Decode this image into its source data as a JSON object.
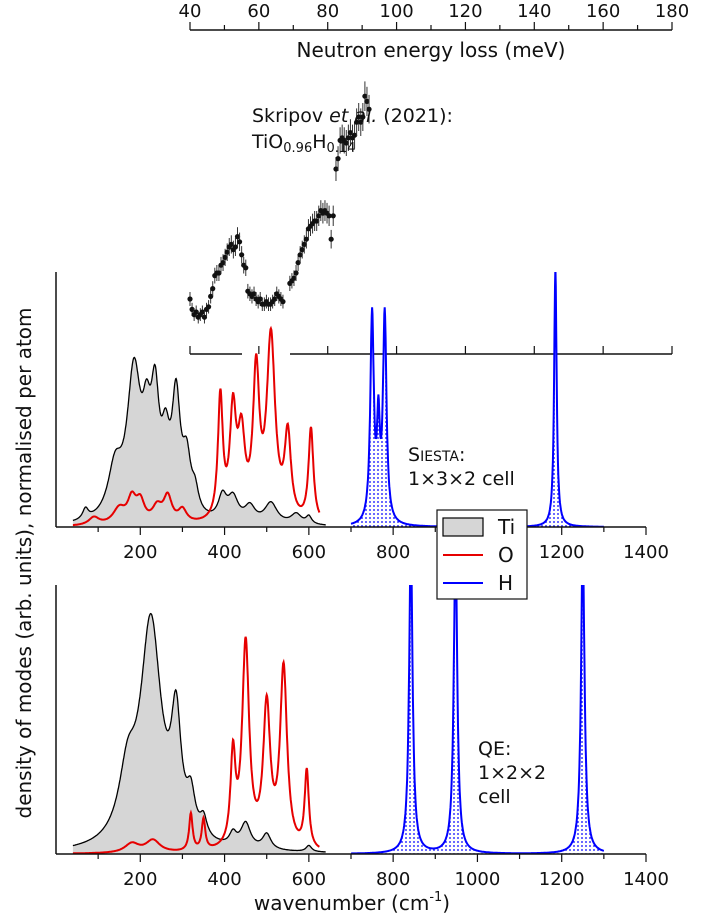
{
  "chart_data": [
    {
      "id": "experiment",
      "type": "scatter",
      "xlabel": "Neutron energy loss  (meV)",
      "xlim": [
        40,
        180
      ],
      "xticks": [
        40,
        60,
        80,
        100,
        120,
        140,
        160,
        180
      ],
      "annotation": {
        "line1_prefix": "Skripov ",
        "line1_italic": "et al.",
        "line1_suffix": " (2021):",
        "formula": [
          "TiO",
          "0.96",
          "H",
          "0.14"
        ]
      },
      "series": [
        {
          "points": [
            [
              40,
              0.1
            ],
            [
              40.6,
              0.06
            ],
            [
              41.2,
              0.04
            ],
            [
              41.8,
              0.05
            ],
            [
              42.4,
              0.03
            ],
            [
              43.0,
              0.04
            ],
            [
              43.6,
              0.05
            ],
            [
              44.2,
              0.03
            ],
            [
              44.8,
              0.06
            ],
            [
              45.4,
              0.07
            ],
            [
              46.0,
              0.11
            ],
            [
              46.6,
              0.14
            ],
            [
              47.2,
              0.19
            ],
            [
              47.8,
              0.2
            ],
            [
              48.4,
              0.2
            ],
            [
              49.0,
              0.23
            ],
            [
              49.6,
              0.24
            ],
            [
              50.2,
              0.26
            ],
            [
              50.8,
              0.28
            ],
            [
              51.4,
              0.3
            ],
            [
              52.0,
              0.31
            ],
            [
              52.6,
              0.29
            ],
            [
              53.2,
              0.3
            ],
            [
              53.8,
              0.34
            ],
            [
              54.4,
              0.32
            ],
            [
              55.0,
              0.27
            ],
            [
              55.6,
              0.23
            ],
            [
              56.2,
              0.22
            ],
            [
              56.8,
              0.13
            ],
            [
              57.4,
              0.12
            ],
            [
              58.0,
              0.11
            ],
            [
              58.6,
              0.12
            ],
            [
              59.2,
              0.1
            ],
            [
              59.8,
              0.09
            ],
            [
              60.4,
              0.1
            ],
            [
              61.0,
              0.08
            ],
            [
              61.6,
              0.08
            ],
            [
              62.2,
              0.09
            ],
            [
              62.8,
              0.08
            ],
            [
              63.4,
              0.08
            ],
            [
              64.0,
              0.09
            ],
            [
              64.6,
              0.1
            ],
            [
              65.2,
              0.12
            ],
            [
              65.8,
              0.11
            ],
            [
              66.4,
              0.1
            ],
            [
              67.0,
              0.09
            ],
            [
              69.0,
              0.16
            ],
            [
              69.6,
              0.17
            ],
            [
              70.2,
              0.18
            ],
            [
              70.8,
              0.2
            ],
            [
              71.4,
              0.24
            ],
            [
              72.0,
              0.27
            ],
            [
              72.6,
              0.29
            ],
            [
              73.2,
              0.31
            ],
            [
              73.8,
              0.33
            ],
            [
              74.4,
              0.37
            ],
            [
              75.0,
              0.38
            ],
            [
              75.6,
              0.39
            ],
            [
              76.2,
              0.4
            ],
            [
              76.8,
              0.4
            ],
            [
              77.4,
              0.42
            ],
            [
              78.0,
              0.44
            ],
            [
              78.6,
              0.43
            ],
            [
              79.2,
              0.44
            ],
            [
              79.8,
              0.43
            ],
            [
              80.4,
              0.42
            ],
            [
              81.0,
              0.33
            ],
            [
              81.6,
              0.42
            ],
            [
              82.4,
              0.6
            ],
            [
              83.0,
              0.64
            ],
            [
              83.6,
              0.71
            ],
            [
              84.2,
              0.72
            ],
            [
              84.8,
              0.71
            ],
            [
              85.4,
              0.7
            ],
            [
              86.0,
              0.72
            ],
            [
              86.6,
              0.74
            ],
            [
              87.2,
              0.72
            ],
            [
              87.8,
              0.73
            ],
            [
              88.4,
              0.78
            ],
            [
              89.0,
              0.8
            ],
            [
              89.6,
              0.78
            ],
            [
              90.2,
              0.8
            ],
            [
              90.8,
              0.88
            ],
            [
              91.4,
              0.86
            ],
            [
              92.0,
              0.83
            ]
          ]
        }
      ]
    },
    {
      "id": "siesta",
      "type": "area",
      "xlim": [
        0,
        1400
      ],
      "xticks": [
        200,
        400,
        600,
        800,
        1000,
        1200,
        1400
      ],
      "tick_labels": [
        "200",
        "400",
        "600",
        "800",
        "",
        "1200",
        "1400"
      ],
      "annotation": {
        "code_first": "S",
        "code_rest": "IESTA",
        "code_suffix": ":",
        "cell": "1×3×2 cell"
      },
      "series": [
        {
          "name": "Ti",
          "color": "#000000",
          "fill": "#d6d6d6",
          "peaks": [
            [
              70,
              0.04,
              8
            ],
            [
              140,
              0.18,
              20
            ],
            [
              185,
              0.55,
              20
            ],
            [
              215,
              0.25,
              12
            ],
            [
              235,
              0.4,
              12
            ],
            [
              260,
              0.23,
              12
            ],
            [
              285,
              0.43,
              12
            ],
            [
              310,
              0.2,
              12
            ],
            [
              330,
              0.08,
              10
            ],
            [
              395,
              0.09,
              12
            ],
            [
              420,
              0.09,
              15
            ],
            [
              460,
              0.06,
              15
            ],
            [
              510,
              0.08,
              18
            ],
            [
              570,
              0.04,
              15
            ],
            [
              600,
              0.03,
              8
            ]
          ]
        },
        {
          "name": "O",
          "color": "#e60000",
          "peaks": [
            [
              90,
              0.03,
              15
            ],
            [
              150,
              0.06,
              18
            ],
            [
              180,
              0.09,
              12
            ],
            [
              200,
              0.08,
              12
            ],
            [
              240,
              0.06,
              14
            ],
            [
              265,
              0.1,
              12
            ],
            [
              300,
              0.05,
              12
            ],
            [
              390,
              0.47,
              7
            ],
            [
              420,
              0.4,
              9
            ],
            [
              440,
              0.3,
              10
            ],
            [
              475,
              0.55,
              9
            ],
            [
              510,
              0.7,
              12
            ],
            [
              550,
              0.32,
              9
            ],
            [
              605,
              0.36,
              7
            ]
          ]
        },
        {
          "name": "H",
          "color": "#0000ff",
          "peaks": [
            [
              750,
              0.8,
              5
            ],
            [
              765,
              0.35,
              4
            ],
            [
              780,
              0.8,
              5
            ],
            [
              1185,
              1.0,
              3.5
            ]
          ]
        }
      ]
    },
    {
      "id": "qe",
      "type": "area",
      "xlabel": "wavenumber (cm",
      "xlabel_sup": "-1",
      "xlabel_end": ")",
      "xlim": [
        0,
        1400
      ],
      "xticks": [
        200,
        400,
        600,
        800,
        1000,
        1200,
        1400
      ],
      "tick_labels": [
        "200",
        "400",
        "600",
        "800",
        "1000",
        "1200",
        "1400"
      ],
      "annotation": {
        "line1": "QE:",
        "line2": "1×2×2",
        "line3": "cell"
      },
      "series": [
        {
          "name": "Ti",
          "color": "#000000",
          "fill": "#d6d6d6",
          "peaks": [
            [
              170,
              0.2,
              25
            ],
            [
              225,
              0.72,
              30
            ],
            [
              285,
              0.36,
              14
            ],
            [
              320,
              0.12,
              12
            ],
            [
              350,
              0.06,
              10
            ],
            [
              420,
              0.04,
              10
            ],
            [
              450,
              0.08,
              14
            ],
            [
              500,
              0.05,
              12
            ],
            [
              600,
              0.02,
              8
            ]
          ]
        },
        {
          "name": "O",
          "color": "#e60000",
          "peaks": [
            [
              180,
              0.03,
              20
            ],
            [
              230,
              0.04,
              20
            ],
            [
              320,
              0.12,
              5
            ],
            [
              350,
              0.1,
              5
            ],
            [
              420,
              0.29,
              7
            ],
            [
              450,
              0.66,
              10
            ],
            [
              500,
              0.45,
              10
            ],
            [
              540,
              0.58,
              10
            ],
            [
              595,
              0.25,
              6
            ]
          ]
        },
        {
          "name": "H",
          "color": "#0000ff",
          "peaks": [
            [
              842,
              1.0,
              5
            ],
            [
              948,
              1.0,
              5
            ],
            [
              1250,
              1.0,
              5
            ]
          ]
        }
      ]
    }
  ],
  "shared": {
    "ylabel": "density of modes (arb. units), normalised per atom",
    "legend": [
      {
        "label": "Ti",
        "color": "#000000",
        "fill": "#d6d6d6"
      },
      {
        "label": "O",
        "color": "#e60000"
      },
      {
        "label": "H",
        "color": "#0000ff"
      }
    ]
  }
}
